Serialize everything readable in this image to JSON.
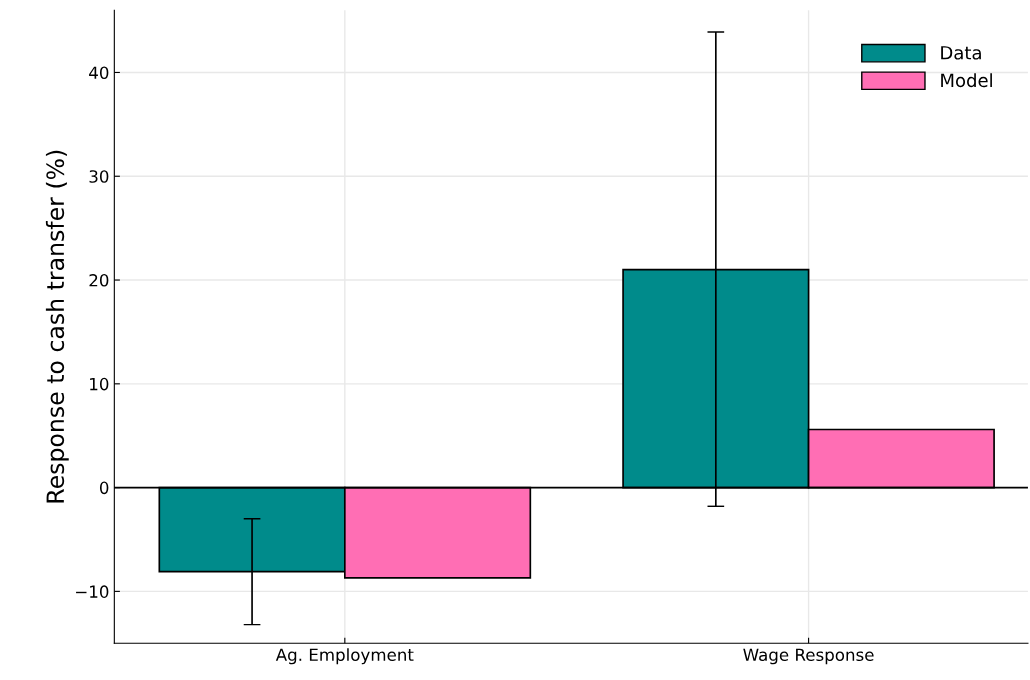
{
  "chart_data": {
    "type": "bar",
    "ylabel": "Response to cash transfer (%)",
    "categories": [
      "Ag. Employment",
      "Wage Response"
    ],
    "series": [
      {
        "name": "Data",
        "color": "#008b8b",
        "values": [
          -8.1,
          21.0
        ],
        "errors": [
          [
            -13.2,
            -3.0
          ],
          [
            -1.8,
            43.9
          ]
        ]
      },
      {
        "name": "Model",
        "color": "#ff6eb4",
        "values": [
          -8.7,
          5.6
        ]
      }
    ],
    "ylim": [
      -15,
      46
    ],
    "yticks": [
      {
        "value": -10,
        "label": "−10"
      },
      0,
      10,
      20,
      30,
      40
    ],
    "ref_lines": [
      {
        "axis": "y",
        "value": 0,
        "color": "#000000"
      }
    ],
    "grid": true,
    "legend": "top right"
  }
}
